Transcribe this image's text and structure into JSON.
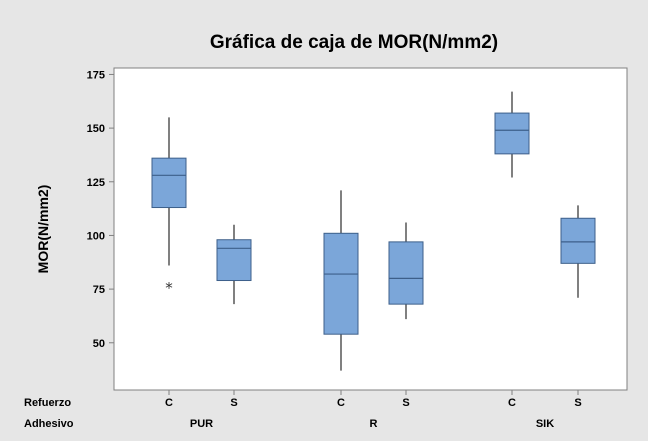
{
  "chart_data": {
    "type": "box",
    "title": "Gráfica de caja de MOR(N/mm2)",
    "ylabel": "MOR(N/mm2)",
    "ylim": [
      28,
      178
    ],
    "yticks": [
      50,
      75,
      100,
      125,
      150,
      175
    ],
    "row_labels": [
      "Refuerzo",
      "Adhesivo"
    ],
    "groups": [
      {
        "adhesivo": "PUR",
        "refuerzo": [
          "C",
          "S"
        ]
      },
      {
        "adhesivo": "R",
        "refuerzo": [
          "C",
          "S"
        ]
      },
      {
        "adhesivo": "SIK",
        "refuerzo": [
          "C",
          "S"
        ]
      }
    ],
    "boxes": [
      {
        "adhesivo": "PUR",
        "refuerzo": "C",
        "min": 86,
        "q1": 113,
        "median": 128,
        "q3": 136,
        "max": 155,
        "outliers": [
          77
        ]
      },
      {
        "adhesivo": "PUR",
        "refuerzo": "S",
        "min": 68,
        "q1": 79,
        "median": 94,
        "q3": 98,
        "max": 105,
        "outliers": []
      },
      {
        "adhesivo": "R",
        "refuerzo": "C",
        "min": 37,
        "q1": 54,
        "median": 82,
        "q3": 101,
        "max": 121,
        "outliers": []
      },
      {
        "adhesivo": "R",
        "refuerzo": "S",
        "min": 61,
        "q1": 68,
        "median": 80,
        "q3": 97,
        "max": 106,
        "outliers": []
      },
      {
        "adhesivo": "SIK",
        "refuerzo": "C",
        "min": 127,
        "q1": 138,
        "median": 149,
        "q3": 157,
        "max": 167,
        "outliers": []
      },
      {
        "adhesivo": "SIK",
        "refuerzo": "S",
        "min": 71,
        "q1": 87,
        "median": 97,
        "q3": 108,
        "max": 114,
        "outliers": []
      }
    ],
    "outlier_marker": "*",
    "colors": {
      "figure_background": "#e6e6e6",
      "plot_background": "#ffffff",
      "box_fill": "#7ba6d9",
      "box_stroke": "#3d5f8a",
      "whisker": "#000000",
      "axis": "#808080"
    },
    "grid": false,
    "legend": "none"
  }
}
